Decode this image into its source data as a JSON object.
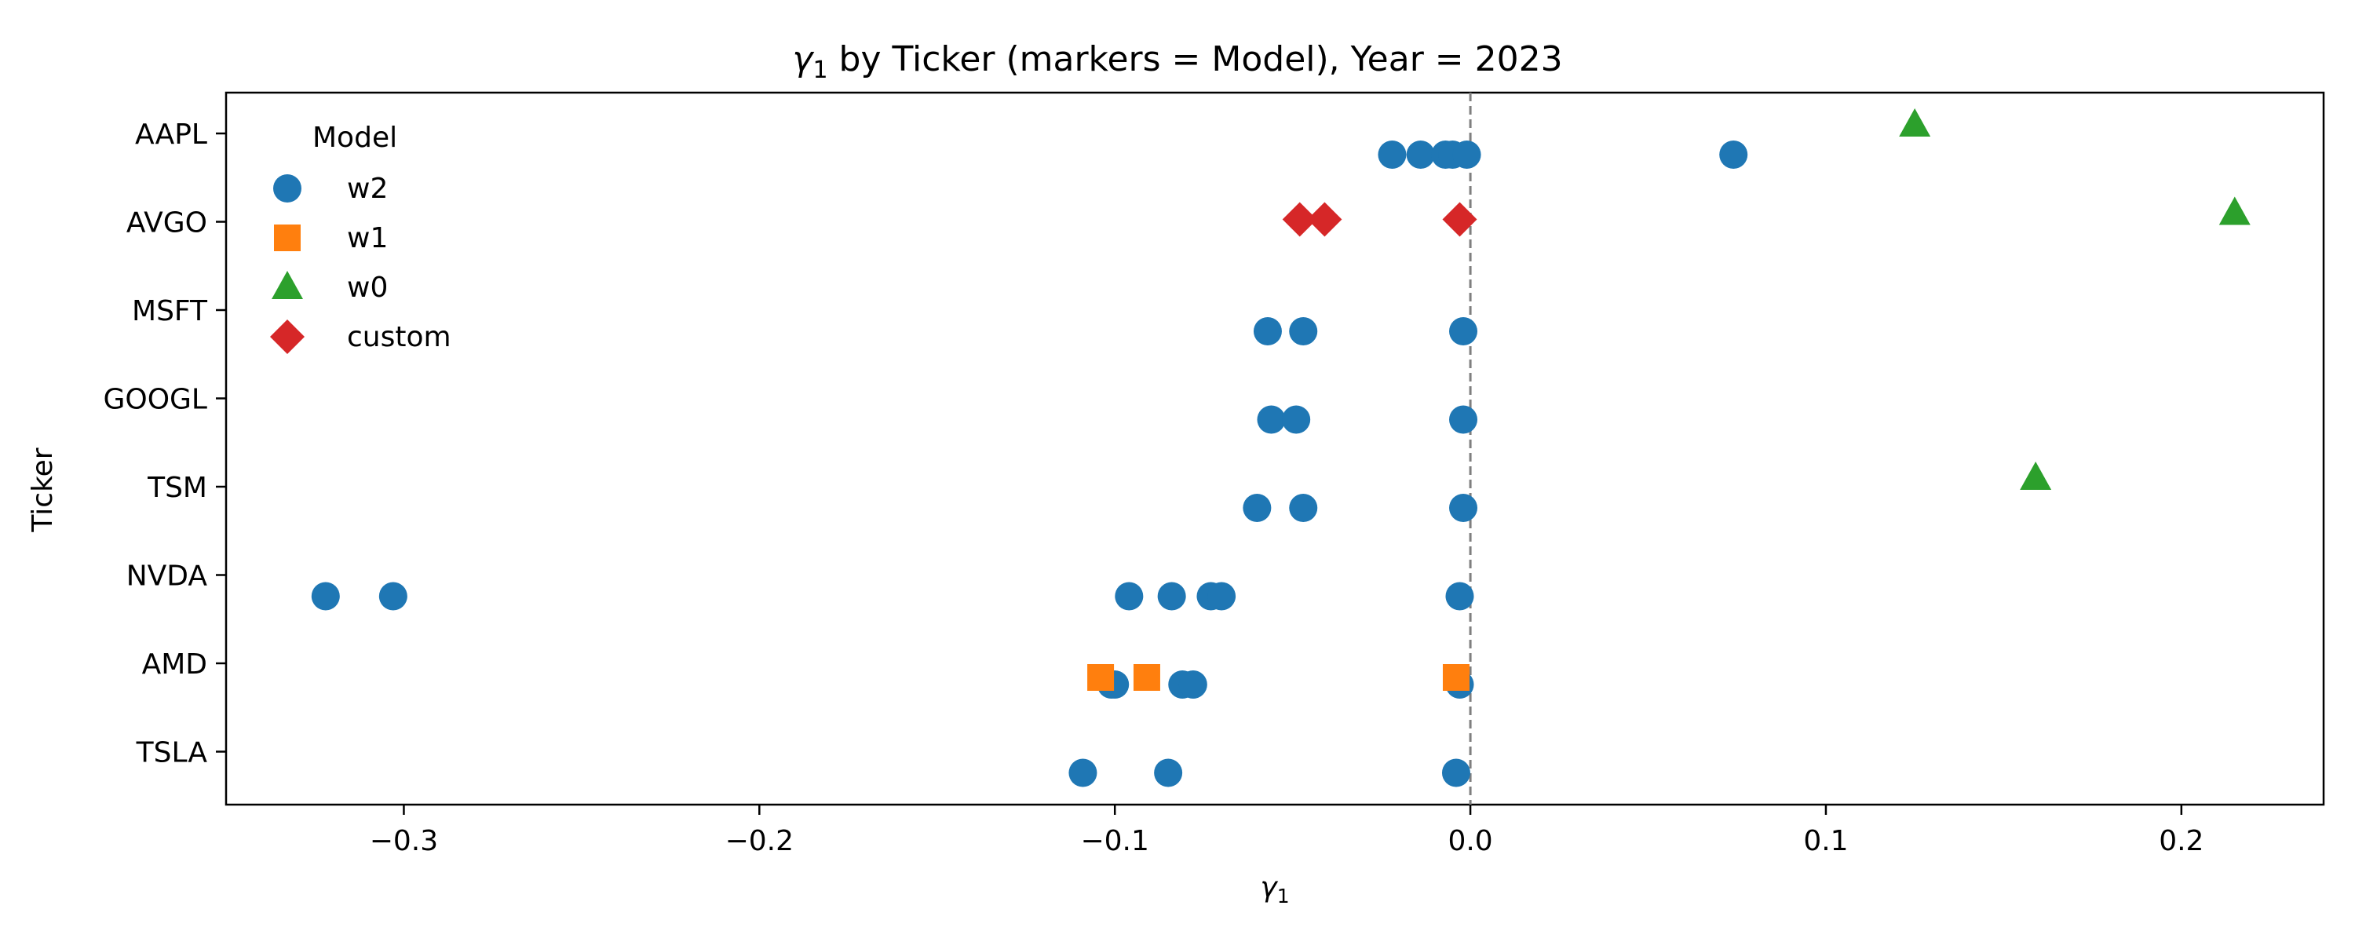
{
  "chart_data": {
    "type": "scatter",
    "title_main": "γ",
    "title_sub": "1",
    "title_rest": " by Ticker (markers = Model), Year = 2023",
    "xlabel_main": "γ",
    "xlabel_sub": "1",
    "ylabel": "Ticker",
    "xlim": [
      -0.35,
      0.24
    ],
    "x_ticks": [
      -0.3,
      -0.2,
      -0.1,
      0.0,
      0.1,
      0.2
    ],
    "x_tick_labels": [
      "−0.3",
      "−0.2",
      "−0.1",
      "0.0",
      "0.1",
      "0.2"
    ],
    "categories": [
      "AAPL",
      "AVGO",
      "MSFT",
      "GOOGL",
      "TSM",
      "NVDA",
      "AMD",
      "TSLA"
    ],
    "reference_line_x": 0.0,
    "grid": false,
    "legend": {
      "title": "Model",
      "position": "top-left"
    },
    "series": [
      {
        "name": "w2",
        "marker": "circle",
        "color": "#1f77b4",
        "points": [
          {
            "ticker": "AAPL",
            "x": -0.022
          },
          {
            "ticker": "AAPL",
            "x": -0.014
          },
          {
            "ticker": "AAPL",
            "x": -0.007
          },
          {
            "ticker": "AAPL",
            "x": -0.005
          },
          {
            "ticker": "AAPL",
            "x": -0.001
          },
          {
            "ticker": "AAPL",
            "x": 0.074
          },
          {
            "ticker": "MSFT",
            "x": -0.057
          },
          {
            "ticker": "MSFT",
            "x": -0.047
          },
          {
            "ticker": "MSFT",
            "x": -0.002
          },
          {
            "ticker": "GOOGL",
            "x": -0.056
          },
          {
            "ticker": "GOOGL",
            "x": -0.049
          },
          {
            "ticker": "GOOGL",
            "x": -0.002
          },
          {
            "ticker": "TSM",
            "x": -0.06
          },
          {
            "ticker": "TSM",
            "x": -0.047
          },
          {
            "ticker": "TSM",
            "x": -0.002
          },
          {
            "ticker": "NVDA",
            "x": -0.322
          },
          {
            "ticker": "NVDA",
            "x": -0.303
          },
          {
            "ticker": "NVDA",
            "x": -0.096
          },
          {
            "ticker": "NVDA",
            "x": -0.084
          },
          {
            "ticker": "NVDA",
            "x": -0.073
          },
          {
            "ticker": "NVDA",
            "x": -0.07
          },
          {
            "ticker": "NVDA",
            "x": -0.003
          },
          {
            "ticker": "AMD",
            "x": -0.101
          },
          {
            "ticker": "AMD",
            "x": -0.1
          },
          {
            "ticker": "AMD",
            "x": -0.081
          },
          {
            "ticker": "AMD",
            "x": -0.078
          },
          {
            "ticker": "AMD",
            "x": -0.003
          },
          {
            "ticker": "TSLA",
            "x": -0.109
          },
          {
            "ticker": "TSLA",
            "x": -0.085
          },
          {
            "ticker": "TSLA",
            "x": -0.004
          }
        ]
      },
      {
        "name": "w1",
        "marker": "square",
        "color": "#ff7f0e",
        "points": [
          {
            "ticker": "AMD",
            "x": -0.104
          },
          {
            "ticker": "AMD",
            "x": -0.091
          },
          {
            "ticker": "AMD",
            "x": -0.004
          }
        ]
      },
      {
        "name": "w0",
        "marker": "triangle",
        "color": "#2ca02c",
        "points": [
          {
            "ticker": "AAPL",
            "x": 0.125
          },
          {
            "ticker": "AVGO",
            "x": 0.215
          },
          {
            "ticker": "TSM",
            "x": 0.159
          }
        ]
      },
      {
        "name": "custom",
        "marker": "diamond",
        "color": "#d62728",
        "points": [
          {
            "ticker": "AVGO",
            "x": -0.048
          },
          {
            "ticker": "AVGO",
            "x": -0.041
          },
          {
            "ticker": "AVGO",
            "x": -0.003
          }
        ]
      }
    ]
  }
}
